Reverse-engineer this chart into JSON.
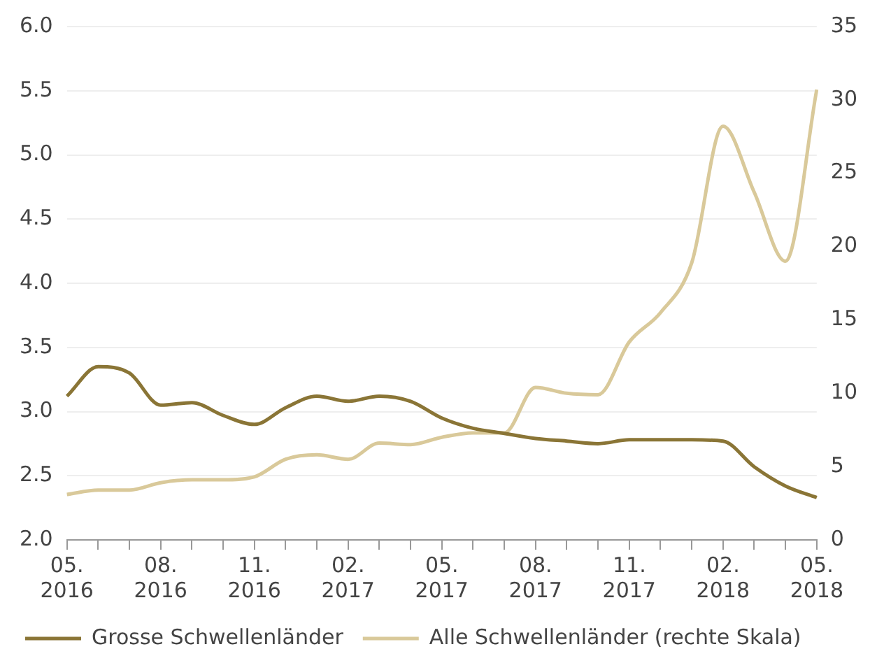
{
  "chart_data": {
    "type": "line",
    "categories": [
      "05. 2016",
      null,
      null,
      "08. 2016",
      null,
      null,
      "11. 2016",
      null,
      null,
      "02. 2017",
      null,
      null,
      "05. 2017",
      null,
      null,
      "08. 2017",
      null,
      null,
      "11. 2017",
      null,
      null,
      "02. 2018",
      null,
      null,
      "05. 2018"
    ],
    "series": [
      {
        "name": "Grosse Schwellenländer",
        "color": "#8a7536",
        "values": [
          3.12,
          3.35,
          3.3,
          3.05,
          3.07,
          2.97,
          2.9,
          3.03,
          3.12,
          3.08,
          3.12,
          3.08,
          2.95,
          2.87,
          2.83,
          2.79,
          2.77,
          2.75,
          2.78,
          2.78,
          2.78,
          2.77,
          2.57,
          2.42,
          2.33
        ]
      },
      {
        "name": "Alle Schwellenländer (rechte Skala)",
        "color": "#d9c99a",
        "axis": "y2",
        "values": [
          3.1,
          3.4,
          3.4,
          3.9,
          4.1,
          4.1,
          4.3,
          5.5,
          5.8,
          5.5,
          6.6,
          6.5,
          7.0,
          7.3,
          7.3,
          10.4,
          10.0,
          9.9,
          13.5,
          15.5,
          18.9,
          28.2,
          23.7,
          19.0,
          30.7
        ]
      }
    ],
    "ylim": [
      2,
      6
    ],
    "yticks": [
      {
        "value": 2,
        "label": "2.0"
      },
      {
        "value": 2.5,
        "label": "2.5"
      },
      {
        "value": 3,
        "label": "3.0"
      },
      {
        "value": 3.5,
        "label": "3.5"
      },
      {
        "value": 4,
        "label": "4.0"
      },
      {
        "value": 4.5,
        "label": "4.5"
      },
      {
        "value": 5,
        "label": "5.0"
      },
      {
        "value": 5.5,
        "label": "5.5"
      },
      {
        "value": 6,
        "label": "6.0"
      }
    ],
    "y2lim": [
      0,
      35
    ],
    "y2ticks": [
      0,
      5,
      10,
      15,
      20,
      25,
      30,
      35
    ],
    "grid": "y",
    "legend": "bottom",
    "marker": "none",
    "line_style": "solid"
  }
}
